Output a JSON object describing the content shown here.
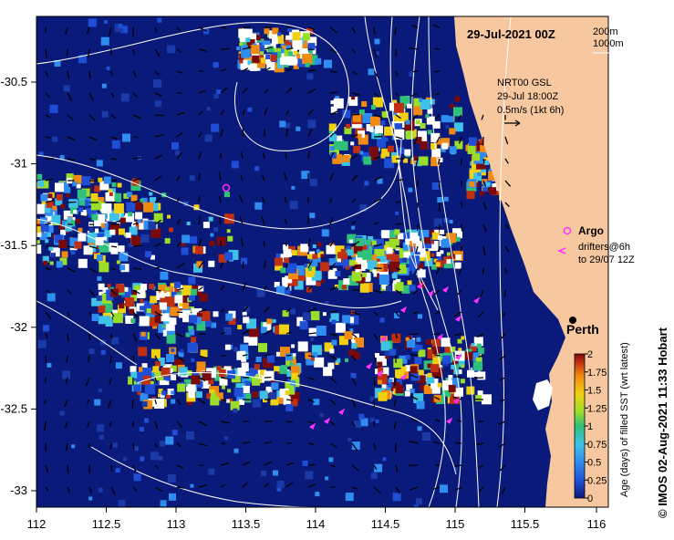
{
  "title": "29-Jul-2021 00Z",
  "contours": [
    "200m",
    "1000m"
  ],
  "current_info": {
    "line1": "NRT00 GSL",
    "line2": "29-Jul 18:00Z",
    "line3": "0.5m/s (1kt 6h)"
  },
  "legend": {
    "argo": "Argo",
    "drifters_line1": "drifters@6h",
    "drifters_line2": "to 29/07 12Z"
  },
  "city": "Perth",
  "credit": "© IMOS 02-Aug-2021 11:33 Hobart",
  "colorbar": {
    "label": "Age (days) of filled SST (wrt latest)",
    "ticks": [
      "2",
      "1.75",
      "1.5",
      "1.25",
      "1",
      "0.75",
      "0.5",
      "0.25",
      "0"
    ],
    "colors": [
      "#0a1a7a",
      "#1f4fd6",
      "#2f8cf0",
      "#3fc2e8",
      "#2fc07a",
      "#9ade2a",
      "#f0d010",
      "#f08a10",
      "#c03010",
      "#7a0a0a"
    ]
  },
  "axes": {
    "x_ticks": [
      "112",
      "112.5",
      "113",
      "113.5",
      "114",
      "114.5",
      "115",
      "115.5",
      "116"
    ],
    "y_ticks": [
      "-30.5",
      "-31",
      "-31.5",
      "-32",
      "-32.5",
      "-33"
    ]
  },
  "colors": {
    "ocean": "#0a1a7a",
    "land": "#f7c8a0",
    "drifter": "#ff33ff",
    "contour": "#ffffff"
  }
}
